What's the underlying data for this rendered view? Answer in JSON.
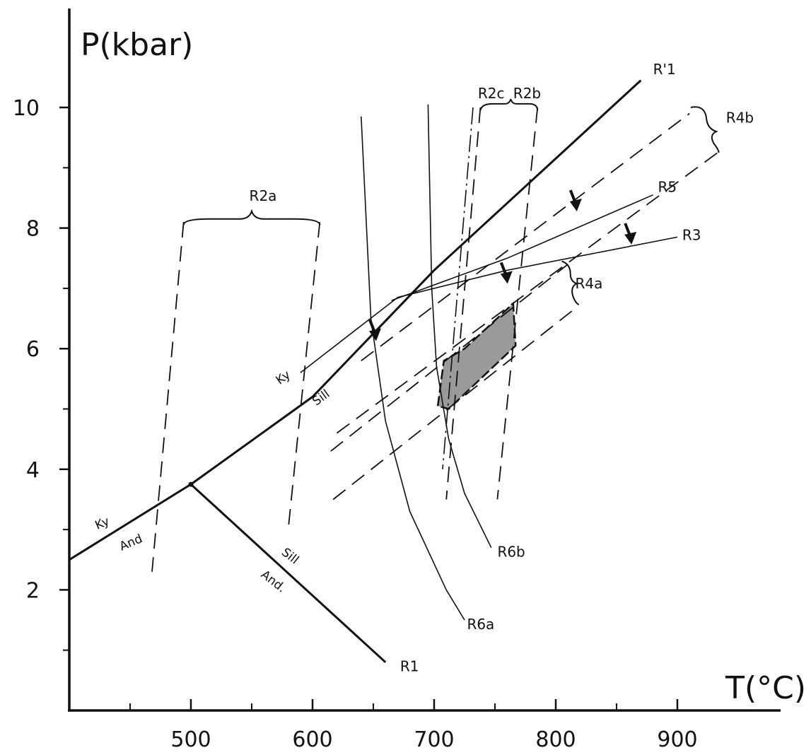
{
  "chart_data": {
    "type": "line",
    "title": "",
    "xlabel": "T(°C)",
    "ylabel": "P(kbar)",
    "xlim": [
      400,
      980
    ],
    "ylim": [
      0,
      12
    ],
    "xticks": {
      "major": [
        500,
        600,
        700,
        800,
        900
      ],
      "minor": [
        450,
        550,
        650,
        750,
        850
      ],
      "labels": [
        "500",
        "600",
        "700",
        "800",
        "900"
      ]
    },
    "yticks": {
      "major": [
        2,
        4,
        6,
        8,
        10
      ],
      "minor": [
        1,
        3,
        5,
        7,
        9
      ],
      "labels": [
        "2",
        "4",
        "6",
        "8",
        "10"
      ]
    },
    "grid": false,
    "series": [
      {
        "name": "R'1",
        "style": "thick",
        "points": [
          [
            400,
            2.5
          ],
          [
            500,
            3.75
          ],
          [
            600,
            5.2
          ],
          [
            700,
            7.3
          ],
          [
            870,
            10.45
          ]
        ]
      },
      {
        "name": "",
        "style": "thick",
        "points": [
          [
            500,
            3.75
          ],
          [
            660,
            0.8
          ]
        ]
      },
      {
        "name": "R5",
        "style": "thin",
        "points": [
          [
            665,
            6.8
          ],
          [
            760,
            7.5
          ],
          [
            880,
            8.55
          ]
        ]
      },
      {
        "name": "R3",
        "style": "thin",
        "points": [
          [
            590,
            5.6
          ],
          [
            670,
            6.85
          ],
          [
            760,
            7.3
          ],
          [
            900,
            7.85
          ]
        ]
      },
      {
        "name": "R6a",
        "style": "thin",
        "points": [
          [
            640,
            9.85
          ],
          [
            648,
            6.5
          ],
          [
            660,
            4.8
          ],
          [
            680,
            3.3
          ],
          [
            710,
            2.0
          ],
          [
            725,
            1.5
          ]
        ]
      },
      {
        "name": "R6b",
        "style": "thin",
        "points": [
          [
            695,
            10.05
          ],
          [
            698,
            7.0
          ],
          [
            702,
            5.7
          ],
          [
            712,
            4.5
          ],
          [
            725,
            3.6
          ],
          [
            747,
            2.7
          ]
        ]
      },
      {
        "name": "R2c",
        "style": "dashdot",
        "points": [
          [
            732,
            10.0
          ],
          [
            707,
            4.0
          ]
        ]
      },
      {
        "name": "R2b",
        "style": "dashed",
        "points": [
          [
            738,
            10.0
          ],
          [
            710,
            3.5
          ]
        ]
      },
      {
        "name": "R2b",
        "style": "dashed",
        "points": [
          [
            785,
            10.0
          ],
          [
            752,
            3.5
          ]
        ]
      },
      {
        "name": "R2a",
        "style": "dashed",
        "points": [
          [
            494,
            8.1
          ],
          [
            468,
            2.3
          ]
        ]
      },
      {
        "name": "R2a",
        "style": "dashed",
        "points": [
          [
            606,
            8.1
          ],
          [
            580,
            3.0
          ]
        ]
      },
      {
        "name": "R4b",
        "style": "dashed",
        "points": [
          [
            640,
            5.8
          ],
          [
            910,
            9.9
          ]
        ]
      },
      {
        "name": "R4b",
        "style": "dashed",
        "points": [
          [
            620,
            4.6
          ],
          [
            933,
            9.25
          ]
        ]
      },
      {
        "name": "R4a",
        "style": "dashed",
        "points": [
          [
            615,
            4.3
          ],
          [
            810,
            7.4
          ]
        ]
      },
      {
        "name": "R4a",
        "style": "dashed",
        "points": [
          [
            617,
            3.5
          ],
          [
            818,
            6.7
          ]
        ]
      }
    ],
    "shaded_region": {
      "name": "",
      "points": [
        [
          703,
          5.05
        ],
        [
          708,
          5.8
        ],
        [
          725,
          6.0
        ],
        [
          765,
          6.75
        ],
        [
          767,
          6.05
        ],
        [
          712,
          5.0
        ]
      ]
    },
    "triple_point": [
      500,
      3.75
    ],
    "arrows": [
      [
        650,
        6.15
      ],
      [
        815,
        8.3
      ],
      [
        758,
        7.1
      ],
      [
        860,
        7.75
      ]
    ],
    "annotations": [
      {
        "text": "R'1",
        "at": [
          880,
          10.55
        ]
      },
      {
        "text": "R2c",
        "at": [
          736,
          10.15
        ]
      },
      {
        "text": "R2b",
        "at": [
          765,
          10.15
        ]
      },
      {
        "text": "R4b",
        "at": [
          940,
          9.75
        ]
      },
      {
        "text": "R5",
        "at": [
          884,
          8.6
        ]
      },
      {
        "text": "R3",
        "at": [
          904,
          7.8
        ]
      },
      {
        "text": "R4a",
        "at": [
          816,
          7.0
        ]
      },
      {
        "text": "R2a",
        "at": [
          548,
          8.45
        ]
      },
      {
        "text": "R6b",
        "at": [
          752,
          2.55
        ]
      },
      {
        "text": "R6a",
        "at": [
          727,
          1.35
        ]
      },
      {
        "text": "R1",
        "at": [
          672,
          0.65
        ]
      }
    ],
    "mineral_labels": [
      {
        "text": "Ky",
        "at": [
          573,
          5.4
        ],
        "rotate": -36
      },
      {
        "text": "Sill",
        "at": [
          603,
          5.05
        ],
        "rotate": -36
      },
      {
        "text": "Ky",
        "at": [
          423,
          3.0
        ],
        "rotate": -23
      },
      {
        "text": "And",
        "at": [
          443,
          2.65
        ],
        "rotate": -23
      },
      {
        "text": "Sill",
        "at": [
          574,
          2.6
        ],
        "rotate": 38
      },
      {
        "text": "And.",
        "at": [
          557,
          2.23
        ],
        "rotate": 38
      }
    ]
  }
}
